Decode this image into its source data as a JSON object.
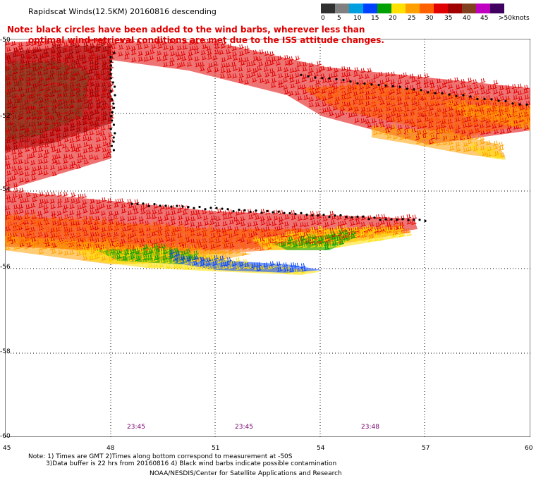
{
  "header": {
    "title": "Rapidscat Winds(12.5KM) 20160816 descending"
  },
  "note": {
    "line1": "Note: black circles have been added to the wind barbs, wherever less than",
    "line2": "optimal wind retrieval conditions are met due to the ISS attitude changes."
  },
  "legend": {
    "labels": [
      "0",
      "5",
      "10",
      "15",
      "20",
      "25",
      "30",
      "35",
      "40",
      "45",
      ">50"
    ],
    "unit": "knots",
    "colors": [
      "#303030",
      "#808080",
      "#00a0e0",
      "#0040ff",
      "#00a000",
      "#ffe000",
      "#ffa000",
      "#ff6000",
      "#e00000",
      "#a00000",
      "#804020",
      "#c000c0",
      "#400060"
    ]
  },
  "axes": {
    "lon_labels": [
      "45",
      "48",
      "51",
      "54",
      "57",
      "60"
    ],
    "lat_labels": [
      "-50",
      "-52",
      "-54",
      "-56",
      "-58",
      "-60"
    ]
  },
  "times": [
    "23:45",
    "23:45",
    "23:48"
  ],
  "footer": {
    "line1": "Note: 1) Times are GMT 2)Times along bottom correspond to measurement at -50S",
    "line2": "3)Data buffer is 22 hrs from 20160816 4) Black wind barbs indicate possible contamination",
    "line3": "NOAA/NESDIS/Center for Satellite Applications and Research"
  }
}
